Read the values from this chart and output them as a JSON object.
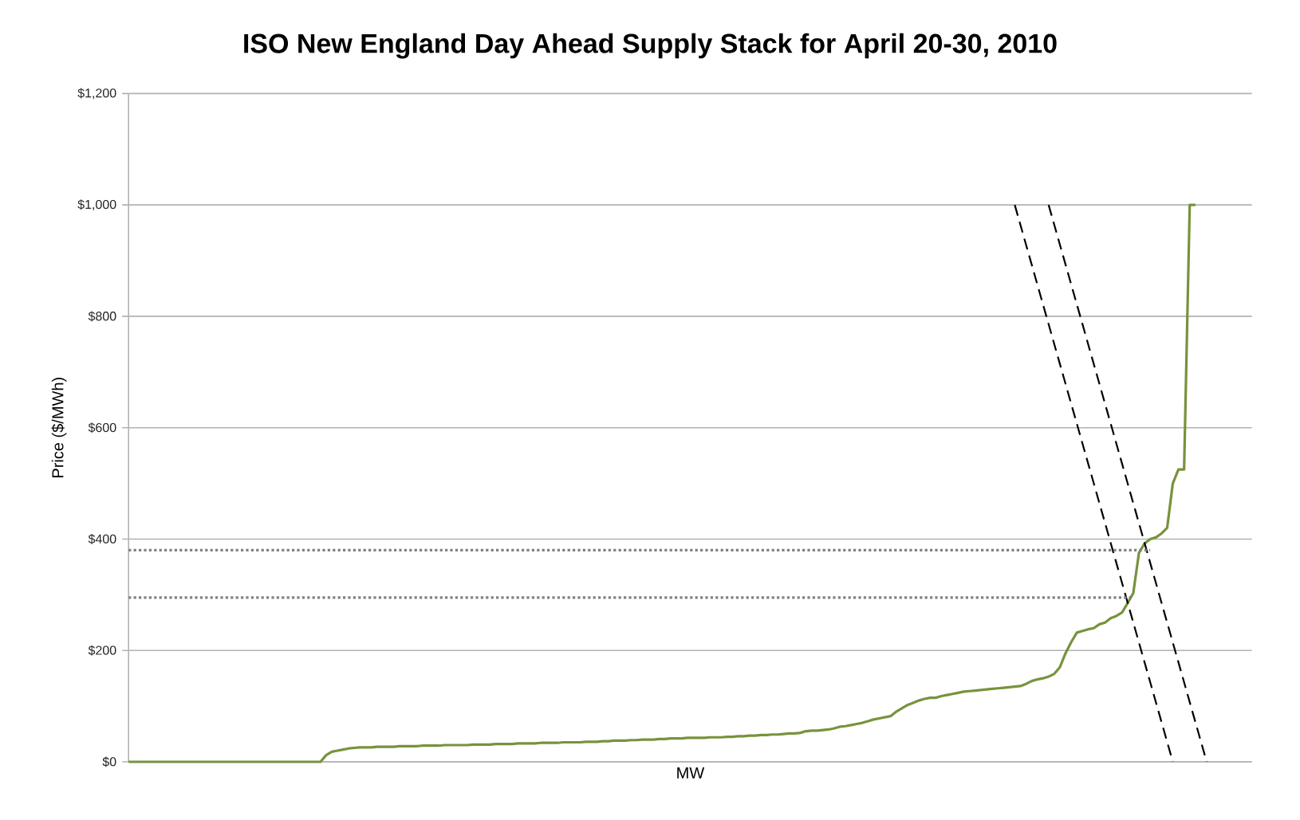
{
  "chart_data": {
    "type": "line",
    "title": "ISO New England Day Ahead Supply Stack for April 20-30, 2010",
    "xlabel": "MW",
    "ylabel": "Price ($/MWh)",
    "categories": [
      null,
      null,
      null,
      null,
      null,
      null,
      null,
      null,
      null,
      null,
      null,
      null,
      null,
      null,
      null,
      null,
      null,
      null,
      null,
      null,
      null,
      null,
      null,
      null,
      null,
      null,
      null,
      null,
      null,
      null,
      null,
      null,
      null,
      null,
      null,
      null,
      null,
      null,
      null,
      null,
      null,
      null,
      null,
      null,
      null,
      null,
      null,
      null,
      null,
      null,
      null,
      null,
      null,
      null,
      null,
      null,
      null,
      null,
      null,
      null,
      null,
      null,
      null,
      null,
      null,
      null,
      null,
      null,
      null,
      null,
      null,
      null,
      null,
      null,
      null,
      null,
      null,
      null,
      null,
      null,
      null,
      null,
      null,
      null,
      null,
      null,
      null,
      null,
      null,
      null,
      null,
      null,
      null,
      null,
      null,
      null,
      null,
      null,
      null,
      null,
      null,
      null,
      null,
      null,
      null,
      null,
      null,
      null,
      null,
      null,
      null,
      null,
      null,
      null,
      null,
      null,
      null,
      null,
      null,
      null,
      null,
      null,
      null,
      null,
      null,
      null,
      null,
      null,
      null,
      null,
      null,
      null,
      null,
      null,
      null,
      null,
      null,
      null,
      null,
      null,
      null,
      null,
      null,
      null,
      null,
      null,
      null,
      null,
      null,
      null,
      null,
      null,
      null,
      null,
      null,
      null,
      null,
      null,
      null,
      null,
      null,
      null,
      null,
      null,
      null,
      null,
      null,
      null,
      null,
      null,
      null,
      null,
      null,
      null,
      null,
      null,
      null,
      null,
      null,
      null,
      null,
      null,
      null,
      null,
      null,
      null,
      null,
      null,
      null,
      null,
      null,
      null,
      null,
      null,
      null,
      null,
      null,
      null,
      null,
      null
    ],
    "series": [
      {
        "color": "#77933c",
        "line_style": "solid",
        "values": [
          0,
          0,
          0,
          0,
          0,
          0,
          0,
          0,
          0,
          0,
          0,
          0,
          0,
          0,
          0,
          0,
          0,
          0,
          0,
          0,
          0,
          0,
          0,
          0,
          0,
          0,
          0,
          0,
          0,
          0,
          0,
          0,
          0,
          0,
          0,
          12,
          18,
          20,
          22,
          24,
          25,
          26,
          26,
          26,
          27,
          27,
          27,
          27,
          28,
          28,
          28,
          28,
          29,
          29,
          29,
          29,
          30,
          30,
          30,
          30,
          30,
          31,
          31,
          31,
          31,
          32,
          32,
          32,
          32,
          33,
          33,
          33,
          33,
          34,
          34,
          34,
          34,
          35,
          35,
          35,
          35,
          36,
          36,
          36,
          37,
          37,
          38,
          38,
          38,
          39,
          39,
          40,
          40,
          40,
          41,
          41,
          42,
          42,
          42,
          43,
          43,
          43,
          43,
          44,
          44,
          44,
          45,
          45,
          46,
          46,
          47,
          47,
          48,
          48,
          49,
          49,
          50,
          51,
          51,
          52,
          55,
          56,
          56,
          57,
          58,
          60,
          63,
          64,
          66,
          68,
          70,
          73,
          76,
          78,
          80,
          82,
          90,
          96,
          102,
          106,
          110,
          113,
          115,
          115,
          118,
          120,
          122,
          124,
          126,
          127,
          128,
          129,
          130,
          131,
          132,
          133,
          134,
          135,
          136,
          140,
          145,
          148,
          150,
          153,
          158,
          170,
          195,
          215,
          232,
          235,
          238,
          240,
          247,
          250,
          258,
          262,
          268,
          285,
          303,
          375,
          392,
          400,
          403,
          410,
          420,
          500,
          525,
          525,
          1000,
          1000,
          null,
          null,
          null,
          null,
          null,
          null,
          null,
          null,
          null,
          null
        ]
      },
      {
        "color": "#000000",
        "line_style": "dashed",
        "values": [
          null,
          null,
          null,
          null,
          null,
          null,
          null,
          null,
          null,
          null,
          null,
          null,
          null,
          null,
          null,
          null,
          null,
          null,
          null,
          null,
          null,
          null,
          null,
          null,
          null,
          null,
          null,
          null,
          null,
          null,
          null,
          null,
          null,
          null,
          null,
          null,
          null,
          null,
          null,
          null,
          null,
          null,
          null,
          null,
          null,
          null,
          null,
          null,
          null,
          null,
          null,
          null,
          null,
          null,
          null,
          null,
          null,
          null,
          null,
          null,
          null,
          null,
          null,
          null,
          null,
          null,
          null,
          null,
          null,
          null,
          null,
          null,
          null,
          null,
          null,
          null,
          null,
          null,
          null,
          null,
          null,
          null,
          null,
          null,
          null,
          null,
          null,
          null,
          null,
          null,
          null,
          null,
          null,
          null,
          null,
          null,
          null,
          null,
          null,
          null,
          null,
          null,
          null,
          null,
          null,
          null,
          null,
          null,
          null,
          null,
          null,
          null,
          null,
          null,
          null,
          null,
          null,
          null,
          null,
          null,
          null,
          null,
          null,
          null,
          null,
          null,
          null,
          null,
          null,
          null,
          null,
          null,
          null,
          null,
          null,
          null,
          null,
          null,
          null,
          null,
          null,
          null,
          null,
          null,
          null,
          null,
          null,
          null,
          null,
          null,
          null,
          null,
          null,
          null,
          null,
          null,
          null,
          1000,
          null,
          null,
          null,
          null,
          null,
          null,
          null,
          null,
          null,
          null,
          null,
          null,
          null,
          null,
          null,
          null,
          null,
          null,
          null,
          null,
          null,
          null,
          null,
          null,
          null,
          null,
          null,
          0,
          null,
          null,
          null,
          null,
          null,
          null,
          null,
          null,
          null,
          null,
          null,
          null,
          null,
          null
        ]
      },
      {
        "color": "#000000",
        "line_style": "dashed",
        "values": [
          null,
          null,
          null,
          null,
          null,
          null,
          null,
          null,
          null,
          null,
          null,
          null,
          null,
          null,
          null,
          null,
          null,
          null,
          null,
          null,
          null,
          null,
          null,
          null,
          null,
          null,
          null,
          null,
          null,
          null,
          null,
          null,
          null,
          null,
          null,
          null,
          null,
          null,
          null,
          null,
          null,
          null,
          null,
          null,
          null,
          null,
          null,
          null,
          null,
          null,
          null,
          null,
          null,
          null,
          null,
          null,
          null,
          null,
          null,
          null,
          null,
          null,
          null,
          null,
          null,
          null,
          null,
          null,
          null,
          null,
          null,
          null,
          null,
          null,
          null,
          null,
          null,
          null,
          null,
          null,
          null,
          null,
          null,
          null,
          null,
          null,
          null,
          null,
          null,
          null,
          null,
          null,
          null,
          null,
          null,
          null,
          null,
          null,
          null,
          null,
          null,
          null,
          null,
          null,
          null,
          null,
          null,
          null,
          null,
          null,
          null,
          null,
          null,
          null,
          null,
          null,
          null,
          null,
          null,
          null,
          null,
          null,
          null,
          null,
          null,
          null,
          null,
          null,
          null,
          null,
          null,
          null,
          null,
          null,
          null,
          null,
          null,
          null,
          null,
          null,
          null,
          null,
          null,
          null,
          null,
          null,
          null,
          null,
          null,
          null,
          null,
          null,
          null,
          null,
          null,
          null,
          null,
          null,
          null,
          null,
          null,
          null,
          null,
          1000,
          null,
          null,
          null,
          null,
          null,
          null,
          null,
          null,
          null,
          null,
          null,
          null,
          null,
          null,
          null,
          null,
          null,
          null,
          null,
          null,
          null,
          null,
          null,
          null,
          null,
          null,
          null,
          0,
          null,
          null,
          null,
          null,
          null,
          null,
          null,
          null
        ]
      },
      {
        "color": "#808080",
        "line_style": "dotted",
        "values": [
          380,
          null,
          null,
          null,
          null,
          null,
          null,
          null,
          null,
          null,
          null,
          null,
          null,
          null,
          null,
          null,
          null,
          null,
          null,
          null,
          null,
          null,
          null,
          null,
          null,
          null,
          null,
          null,
          null,
          null,
          null,
          null,
          null,
          null,
          null,
          null,
          null,
          null,
          null,
          null,
          null,
          null,
          null,
          null,
          null,
          null,
          null,
          null,
          null,
          null,
          null,
          null,
          null,
          null,
          null,
          null,
          null,
          null,
          null,
          null,
          null,
          null,
          null,
          null,
          null,
          null,
          null,
          null,
          null,
          null,
          null,
          null,
          null,
          null,
          null,
          null,
          null,
          null,
          null,
          null,
          null,
          null,
          null,
          null,
          null,
          null,
          null,
          null,
          null,
          null,
          null,
          null,
          null,
          null,
          null,
          null,
          null,
          null,
          null,
          null,
          null,
          null,
          null,
          null,
          null,
          null,
          null,
          null,
          null,
          null,
          null,
          null,
          null,
          null,
          null,
          null,
          null,
          null,
          null,
          null,
          null,
          null,
          null,
          null,
          null,
          null,
          null,
          null,
          null,
          null,
          null,
          null,
          null,
          null,
          null,
          null,
          null,
          null,
          null,
          null,
          null,
          null,
          null,
          null,
          null,
          null,
          null,
          null,
          null,
          null,
          null,
          null,
          null,
          null,
          null,
          null,
          null,
          null,
          null,
          null,
          null,
          null,
          null,
          null,
          null,
          null,
          null,
          null,
          null,
          null,
          null,
          null,
          null,
          null,
          null,
          null,
          null,
          null,
          null,
          null,
          null,
          380,
          null,
          null,
          null,
          null,
          null,
          null,
          null,
          null,
          null,
          null,
          null,
          null,
          null,
          null,
          null,
          null,
          null,
          null
        ]
      },
      {
        "color": "#808080",
        "line_style": "dotted",
        "values": [
          295,
          null,
          null,
          null,
          null,
          null,
          null,
          null,
          null,
          null,
          null,
          null,
          null,
          null,
          null,
          null,
          null,
          null,
          null,
          null,
          null,
          null,
          null,
          null,
          null,
          null,
          null,
          null,
          null,
          null,
          null,
          null,
          null,
          null,
          null,
          null,
          null,
          null,
          null,
          null,
          null,
          null,
          null,
          null,
          null,
          null,
          null,
          null,
          null,
          null,
          null,
          null,
          null,
          null,
          null,
          null,
          null,
          null,
          null,
          null,
          null,
          null,
          null,
          null,
          null,
          null,
          null,
          null,
          null,
          null,
          null,
          null,
          null,
          null,
          null,
          null,
          null,
          null,
          null,
          null,
          null,
          null,
          null,
          null,
          null,
          null,
          null,
          null,
          null,
          null,
          null,
          null,
          null,
          null,
          null,
          null,
          null,
          null,
          null,
          null,
          null,
          null,
          null,
          null,
          null,
          null,
          null,
          null,
          null,
          null,
          null,
          null,
          null,
          null,
          null,
          null,
          null,
          null,
          null,
          null,
          null,
          null,
          null,
          null,
          null,
          null,
          null,
          null,
          null,
          null,
          null,
          null,
          null,
          null,
          null,
          null,
          null,
          null,
          null,
          null,
          null,
          null,
          null,
          null,
          null,
          null,
          null,
          null,
          null,
          null,
          null,
          null,
          null,
          null,
          null,
          null,
          null,
          null,
          null,
          null,
          null,
          null,
          null,
          null,
          null,
          null,
          null,
          null,
          null,
          null,
          null,
          null,
          null,
          null,
          null,
          null,
          null,
          null,
          295,
          null,
          null,
          null,
          null,
          null,
          null,
          null,
          null,
          null,
          null,
          null,
          null,
          null,
          null,
          null,
          null,
          null,
          null,
          null,
          null,
          null
        ]
      }
    ],
    "ylim": [
      0,
      1200
    ],
    "yticks": [
      {
        "value": 0,
        "label": "$0"
      },
      {
        "value": 200,
        "label": "$200"
      },
      {
        "value": 400,
        "label": "$400"
      },
      {
        "value": 600,
        "label": "$600"
      },
      {
        "value": 800,
        "label": "$800"
      },
      {
        "value": 1000,
        "label": "$1,000"
      },
      {
        "value": 1200,
        "label": "$1,200"
      }
    ],
    "grid": "y"
  }
}
